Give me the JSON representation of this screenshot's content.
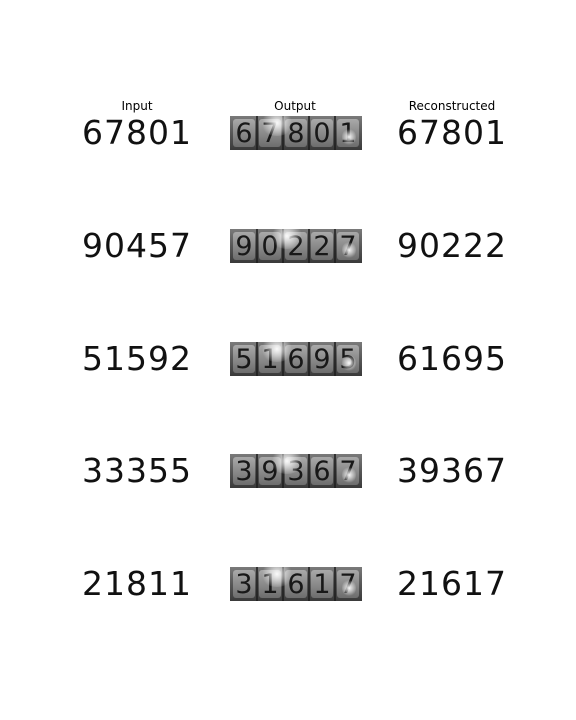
{
  "columns": [
    "Input",
    "Output",
    "Reconstructed"
  ],
  "rows": [
    {
      "input": "67801",
      "output": "67801",
      "reconstructed": "67801"
    },
    {
      "input": "90457",
      "output": "90227",
      "reconstructed": "90222"
    },
    {
      "input": "51592",
      "output": "51695",
      "reconstructed": "61695"
    },
    {
      "input": "33355",
      "output": "39367",
      "reconstructed": "39367"
    },
    {
      "input": "21811",
      "output": "31617",
      "reconstructed": "21617"
    }
  ]
}
